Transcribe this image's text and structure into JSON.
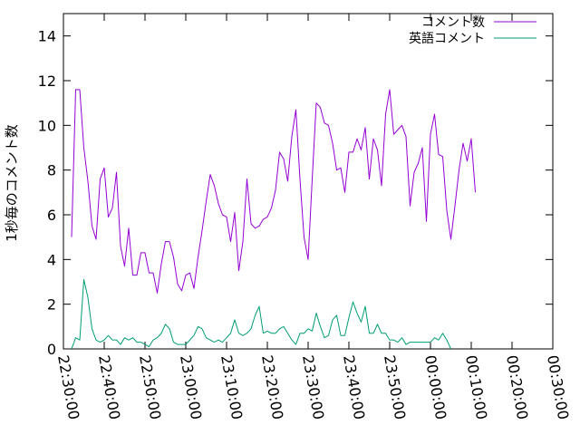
{
  "chart_data": {
    "type": "line",
    "title": "",
    "xlabel": "",
    "ylabel": "1秒毎のコメント数",
    "xlim_minutes": [
      0,
      120
    ],
    "ylim": [
      0,
      15
    ],
    "y_ticks": [
      0,
      2,
      4,
      6,
      8,
      10,
      12,
      14
    ],
    "x_ticks": [
      {
        "t": 0,
        "label": "22:30:00"
      },
      {
        "t": 10,
        "label": "22:40:00"
      },
      {
        "t": 20,
        "label": "22:50:00"
      },
      {
        "t": 30,
        "label": "23:00:00"
      },
      {
        "t": 40,
        "label": "23:10:00"
      },
      {
        "t": 50,
        "label": "23:20:00"
      },
      {
        "t": 60,
        "label": "23:30:00"
      },
      {
        "t": 70,
        "label": "23:40:00"
      },
      {
        "t": 80,
        "label": "23:50:00"
      },
      {
        "t": 90,
        "label": "00:00:00"
      },
      {
        "t": 100,
        "label": "00:10:00"
      },
      {
        "t": 110,
        "label": "00:20:00"
      },
      {
        "t": 120,
        "label": "00:30:00"
      }
    ],
    "legend_position": "top-right",
    "x_start_minute": 2,
    "x_step_minutes": 1,
    "series": [
      {
        "name": "コメント数",
        "color": "#9400d3",
        "values": [
          5.0,
          11.6,
          11.6,
          9.0,
          7.5,
          5.5,
          4.9,
          7.6,
          8.1,
          5.9,
          6.3,
          7.9,
          4.6,
          3.7,
          5.4,
          3.3,
          3.3,
          4.3,
          4.3,
          3.4,
          3.4,
          2.5,
          3.8,
          4.8,
          4.8,
          4.1,
          2.9,
          2.6,
          3.3,
          3.4,
          2.7,
          4.1,
          5.3,
          6.6,
          7.8,
          7.3,
          6.5,
          6.0,
          5.9,
          4.8,
          6.1,
          3.5,
          4.8,
          7.6,
          5.6,
          5.4,
          5.5,
          5.8,
          5.9,
          6.3,
          7.1,
          8.8,
          8.5,
          7.5,
          9.5,
          10.7,
          7.6,
          5.0,
          4.0,
          7.6,
          11.0,
          10.8,
          10.1,
          10.0,
          9.2,
          8.0,
          8.1,
          7.0,
          8.8,
          8.8,
          9.4,
          8.9,
          9.9,
          7.6,
          9.4,
          8.9,
          7.3,
          10.5,
          11.6,
          9.6,
          9.8,
          10.0,
          9.5,
          6.4,
          7.9,
          8.3,
          9.0,
          5.7,
          9.6,
          10.5,
          8.7,
          8.6,
          6.2,
          4.9,
          6.4,
          8.0,
          9.2,
          8.4,
          9.4,
          7.0
        ]
      },
      {
        "name": "英語コメント",
        "color": "#009e73",
        "values": [
          0.0,
          0.5,
          0.4,
          3.1,
          2.3,
          0.9,
          0.4,
          0.3,
          0.4,
          0.6,
          0.4,
          0.4,
          0.2,
          0.5,
          0.4,
          0.5,
          0.3,
          0.3,
          0.2,
          0.1,
          0.4,
          0.5,
          0.7,
          1.1,
          0.9,
          0.3,
          0.2,
          0.2,
          0.2,
          0.4,
          0.6,
          1.0,
          0.9,
          0.5,
          0.4,
          0.3,
          0.4,
          0.3,
          0.5,
          0.7,
          1.3,
          0.7,
          0.6,
          0.7,
          0.9,
          1.5,
          1.9,
          0.7,
          0.8,
          0.7,
          0.7,
          0.9,
          1.0,
          0.7,
          0.4,
          0.2,
          0.7,
          0.7,
          0.9,
          0.8,
          1.6,
          1.0,
          0.5,
          0.6,
          1.3,
          1.5,
          0.6,
          0.6,
          1.4,
          2.1,
          1.6,
          1.2,
          1.9,
          0.7,
          0.7,
          1.1,
          0.7,
          0.7,
          0.4,
          0.4,
          0.3,
          0.5,
          0.2,
          0.3,
          0.3,
          0.3,
          0.3,
          0.3,
          0.3,
          0.5,
          0.4,
          0.7,
          0.4,
          0.0
        ]
      }
    ]
  }
}
